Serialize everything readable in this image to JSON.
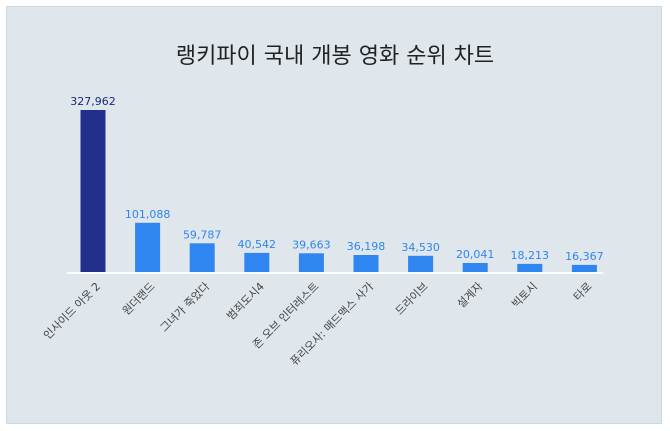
{
  "chart_data": {
    "type": "bar",
    "title": "랭키파이 국내 개봉 영화 순위 차트",
    "categories": [
      "인사이드 아웃 2",
      "원더랜드",
      "그녀가 죽었다",
      "범죄도시4",
      "존 오브 인터레스트",
      "퓨리오사: 매드맥스 사가",
      "드라이브",
      "설계자",
      "빅토시",
      "타로"
    ],
    "values": [
      327962,
      101088,
      59787,
      40542,
      39663,
      36198,
      34530,
      20041,
      18213,
      16367
    ],
    "value_labels": [
      "327,962",
      "101,088",
      "59,787",
      "40,542",
      "39,663",
      "36,198",
      "34,530",
      "20,041",
      "18,213",
      "16,367"
    ],
    "ylim": [
      0,
      327962
    ],
    "grid": false,
    "legend": "none"
  },
  "colors": {
    "background": "#dfe6ec",
    "highlight_bar": "#22308c",
    "bar": "#2f86f0",
    "highlight_label": "#1b2a7a",
    "label": "#2f86f0",
    "axis": "#ffffff"
  }
}
